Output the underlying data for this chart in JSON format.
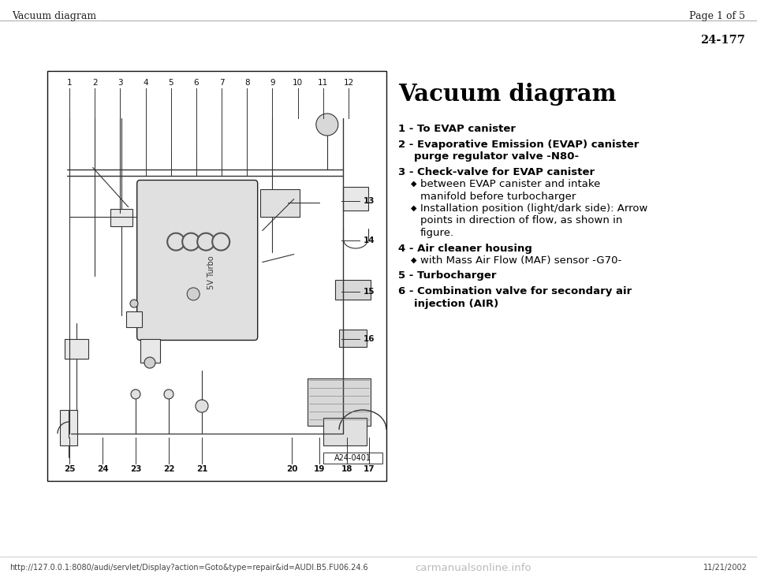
{
  "page_header_left": "Vacuum diagram",
  "page_header_right": "Page 1 of 5",
  "page_number": "24-177",
  "title": "Vacuum diagram",
  "items": [
    {
      "number": "1",
      "bold": true,
      "text": "To EVAP canister",
      "sub": []
    },
    {
      "number": "2",
      "bold": true,
      "text": "Evaporative Emission (EVAP) canister\n     purge regulator valve -N80-",
      "sub": []
    },
    {
      "number": "3",
      "bold": true,
      "text": "Check-valve for EVAP canister",
      "sub": [
        "between EVAP canister and intake\n     manifold before turbocharger",
        "Installation position (light/dark side): Arrow\n     points in direction of flow, as shown in\n     figure."
      ]
    },
    {
      "number": "4",
      "bold": true,
      "text": "Air cleaner housing",
      "sub": [
        "with Mass Air Flow (MAF) sensor -G70-"
      ]
    },
    {
      "number": "5",
      "bold": true,
      "text": "Turbocharger",
      "sub": []
    },
    {
      "number": "6",
      "bold": true,
      "text": "Combination valve for secondary air\n     injection (AIR)",
      "sub": []
    }
  ],
  "diagram_caption": "A24-0401",
  "top_labels": [
    "1",
    "2",
    "3",
    "4",
    "5",
    "6",
    "7",
    "8",
    "9",
    "10",
    "11",
    "12"
  ],
  "bottom_labels_left": [
    "25",
    "24",
    "23",
    "22",
    "21"
  ],
  "bottom_labels_right": [
    "20",
    "19",
    "18",
    "17"
  ],
  "right_labels": [
    "13",
    "14",
    "15",
    "16"
  ],
  "footer_url": "http://127.0.0.1:8080/audi/servlet/Display?action=Goto&type=repair&id=AUDI.B5.FU06.24.6",
  "footer_date": "11/21/2002",
  "footer_watermark": "carmanualsonline.info",
  "bg_color": "#ffffff",
  "text_color": "#000000",
  "diagram_line_color": "#333333"
}
